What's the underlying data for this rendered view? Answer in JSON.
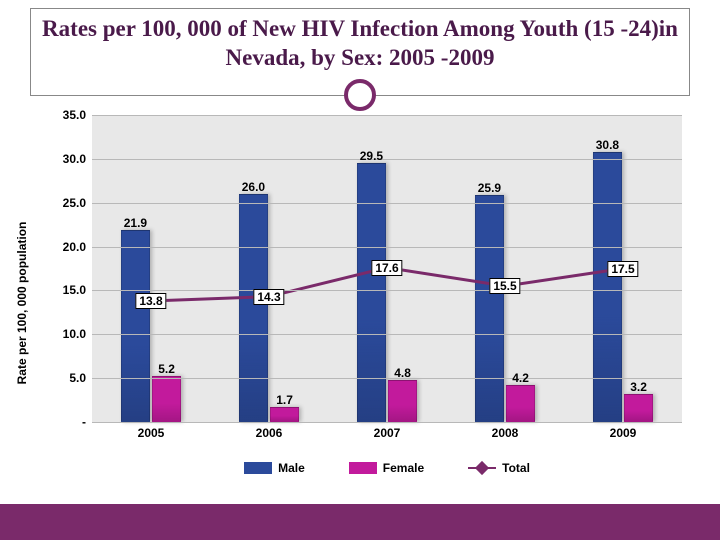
{
  "title": "Rates per 100, 000 of New HIV Infection Among Youth (15 -24)in Nevada, by Sex: 2005 -2009",
  "accent_color": "#7a2a6a",
  "chart": {
    "type": "bar+line",
    "background_color": "#e8e8e8",
    "grid_color": "#b8b8b8",
    "y_axis_title": "Rate per 100, 000 population",
    "ylim": [
      0,
      35
    ],
    "ytick_step": 5,
    "ytick_labels": [
      "-",
      "5.0",
      "10.0",
      "15.0",
      "20.0",
      "25.0",
      "30.0",
      "35.0"
    ],
    "categories": [
      "2005",
      "2006",
      "2007",
      "2008",
      "2009"
    ],
    "bar_width": 0.24,
    "series": [
      {
        "name": "Male",
        "color": "#2b4a9b",
        "values": [
          21.9,
          26.0,
          29.5,
          25.9,
          30.8
        ]
      },
      {
        "name": "Female",
        "color": "#c21a9c",
        "values": [
          5.2,
          1.7,
          4.8,
          4.2,
          3.2
        ]
      }
    ],
    "line_series": {
      "name": "Total",
      "color": "#7a2a6a",
      "values": [
        13.8,
        14.3,
        17.6,
        15.5,
        17.5
      ],
      "marker": "diamond"
    },
    "label_fontsize": 12,
    "label_fontweight": "bold"
  },
  "legend": {
    "items": [
      {
        "label": "Male",
        "swatch_color": "#2b4a9b",
        "kind": "bar"
      },
      {
        "label": "Female",
        "swatch_color": "#c21a9c",
        "kind": "bar"
      },
      {
        "label": "Total",
        "swatch_color": "#7a2a6a",
        "kind": "line"
      }
    ]
  }
}
